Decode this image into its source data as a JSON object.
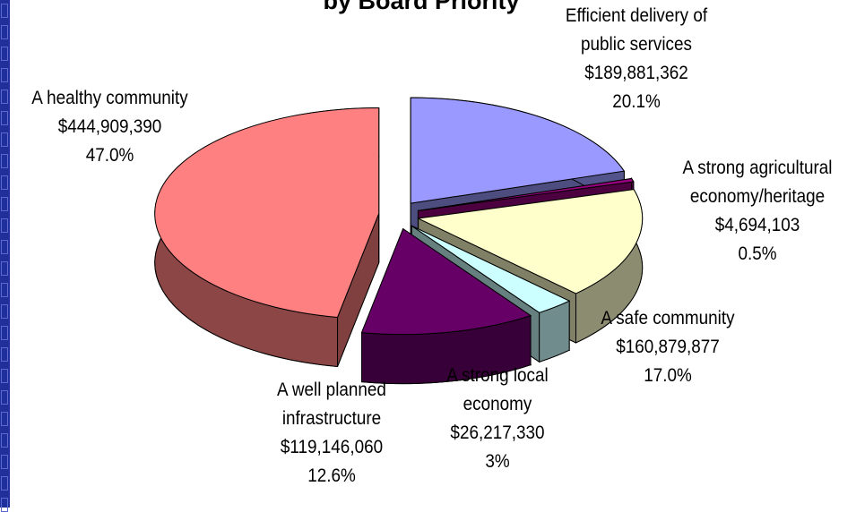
{
  "chart_data": {
    "type": "pie",
    "title": "by Board Priority",
    "categories": [
      "Efficient delivery of public services",
      "A strong agricultural economy/heritage",
      "A safe community",
      "A strong local economy",
      "A well planned infrastructure",
      "A healthy community"
    ],
    "values": [
      189881362,
      4694103,
      160879877,
      26217330,
      119146060,
      444909390
    ],
    "value_labels": [
      "$189,881,362",
      "$4,694,103",
      "$160,879,877",
      "$26,217,330",
      "$119,146,060",
      "$444,909,390"
    ],
    "percents": [
      20.1,
      0.5,
      17.0,
      3,
      12.6,
      47.0
    ],
    "percent_labels": [
      "20.1%",
      "0.5%",
      "17.0%",
      "3%",
      "12.6%",
      "47.0%"
    ],
    "colors": [
      "#9999ff",
      "#990080",
      "#ffffcc",
      "#ccffff",
      "#660066",
      "#ff8080"
    ]
  }
}
